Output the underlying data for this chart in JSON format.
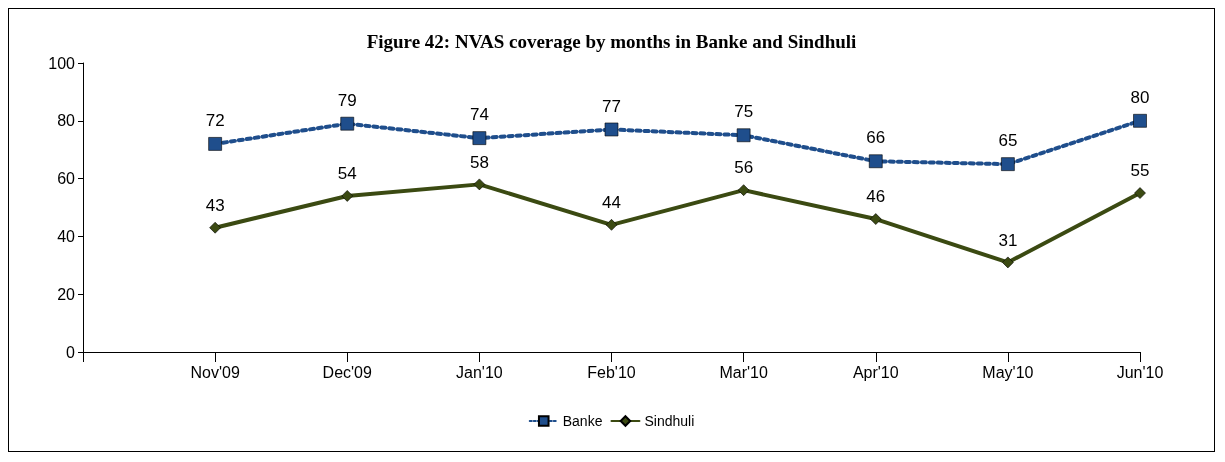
{
  "chart_data": {
    "type": "line",
    "title": "Figure 42: NVAS coverage by months in Banke and Sindhuli",
    "categories": [
      null,
      "Nov'09",
      "Dec'09",
      "Jan'10",
      "Feb'10",
      "Mar'10",
      "Apr'10",
      "May'10",
      "Jun'10"
    ],
    "series": [
      {
        "name": "Banke",
        "color": "#1f4e8c",
        "marker": "square",
        "line_style": "dotted",
        "values": [
          null,
          72,
          79,
          74,
          77,
          75,
          66,
          65,
          80
        ]
      },
      {
        "name": "Sindhuli",
        "color": "#3b4a12",
        "marker": "diamond",
        "line_style": "solid",
        "values": [
          null,
          43,
          54,
          58,
          44,
          56,
          46,
          31,
          55
        ]
      }
    ],
    "ylim": [
      0,
      100
    ],
    "yticks": [
      0,
      20,
      40,
      60,
      80,
      100
    ],
    "grid": false,
    "legend": "bottom",
    "data_labels": true
  }
}
